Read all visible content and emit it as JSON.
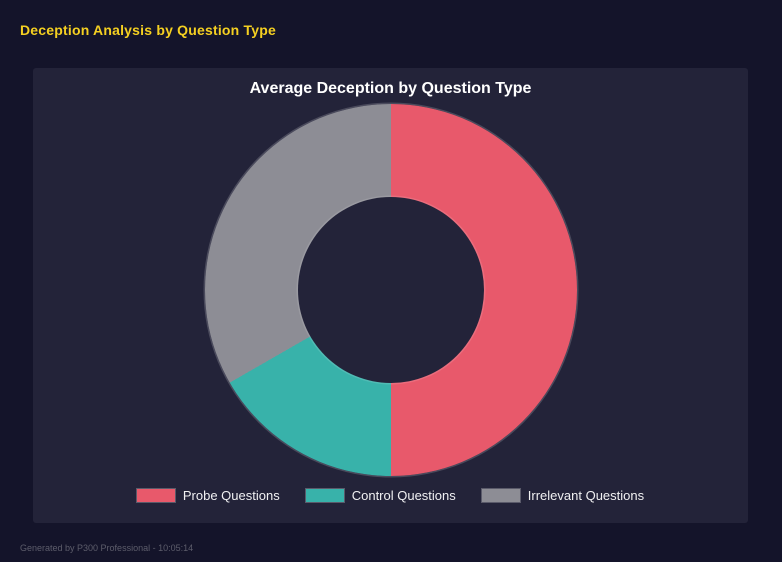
{
  "header": {
    "title": "Deception Analysis by Question Type"
  },
  "chart_data": {
    "type": "pie",
    "variant": "doughnut",
    "title": "Average Deception by Question Type",
    "labels": [
      "Probe Questions",
      "Control Questions",
      "Irrelevant Questions"
    ],
    "values": [
      50,
      16.7,
      33.3
    ],
    "unit": "% of total (estimated from arc angles)",
    "colors": [
      "#e8596b",
      "#38b2aa",
      "#8d8d95"
    ],
    "cutout_ratio": 0.5,
    "start_angle_deg": 0,
    "legend_position": "bottom",
    "grid": false
  },
  "footer": {
    "text": "Generated by P300 Professional - 10:05:14"
  },
  "theme": {
    "page_background": "#14142a",
    "panel_background": "#232339",
    "page_title_color": "#f5d021",
    "chart_title_color": "#ffffff",
    "legend_text_color": "#f0f0f2",
    "footer_text_color": "#5d5d6b"
  }
}
